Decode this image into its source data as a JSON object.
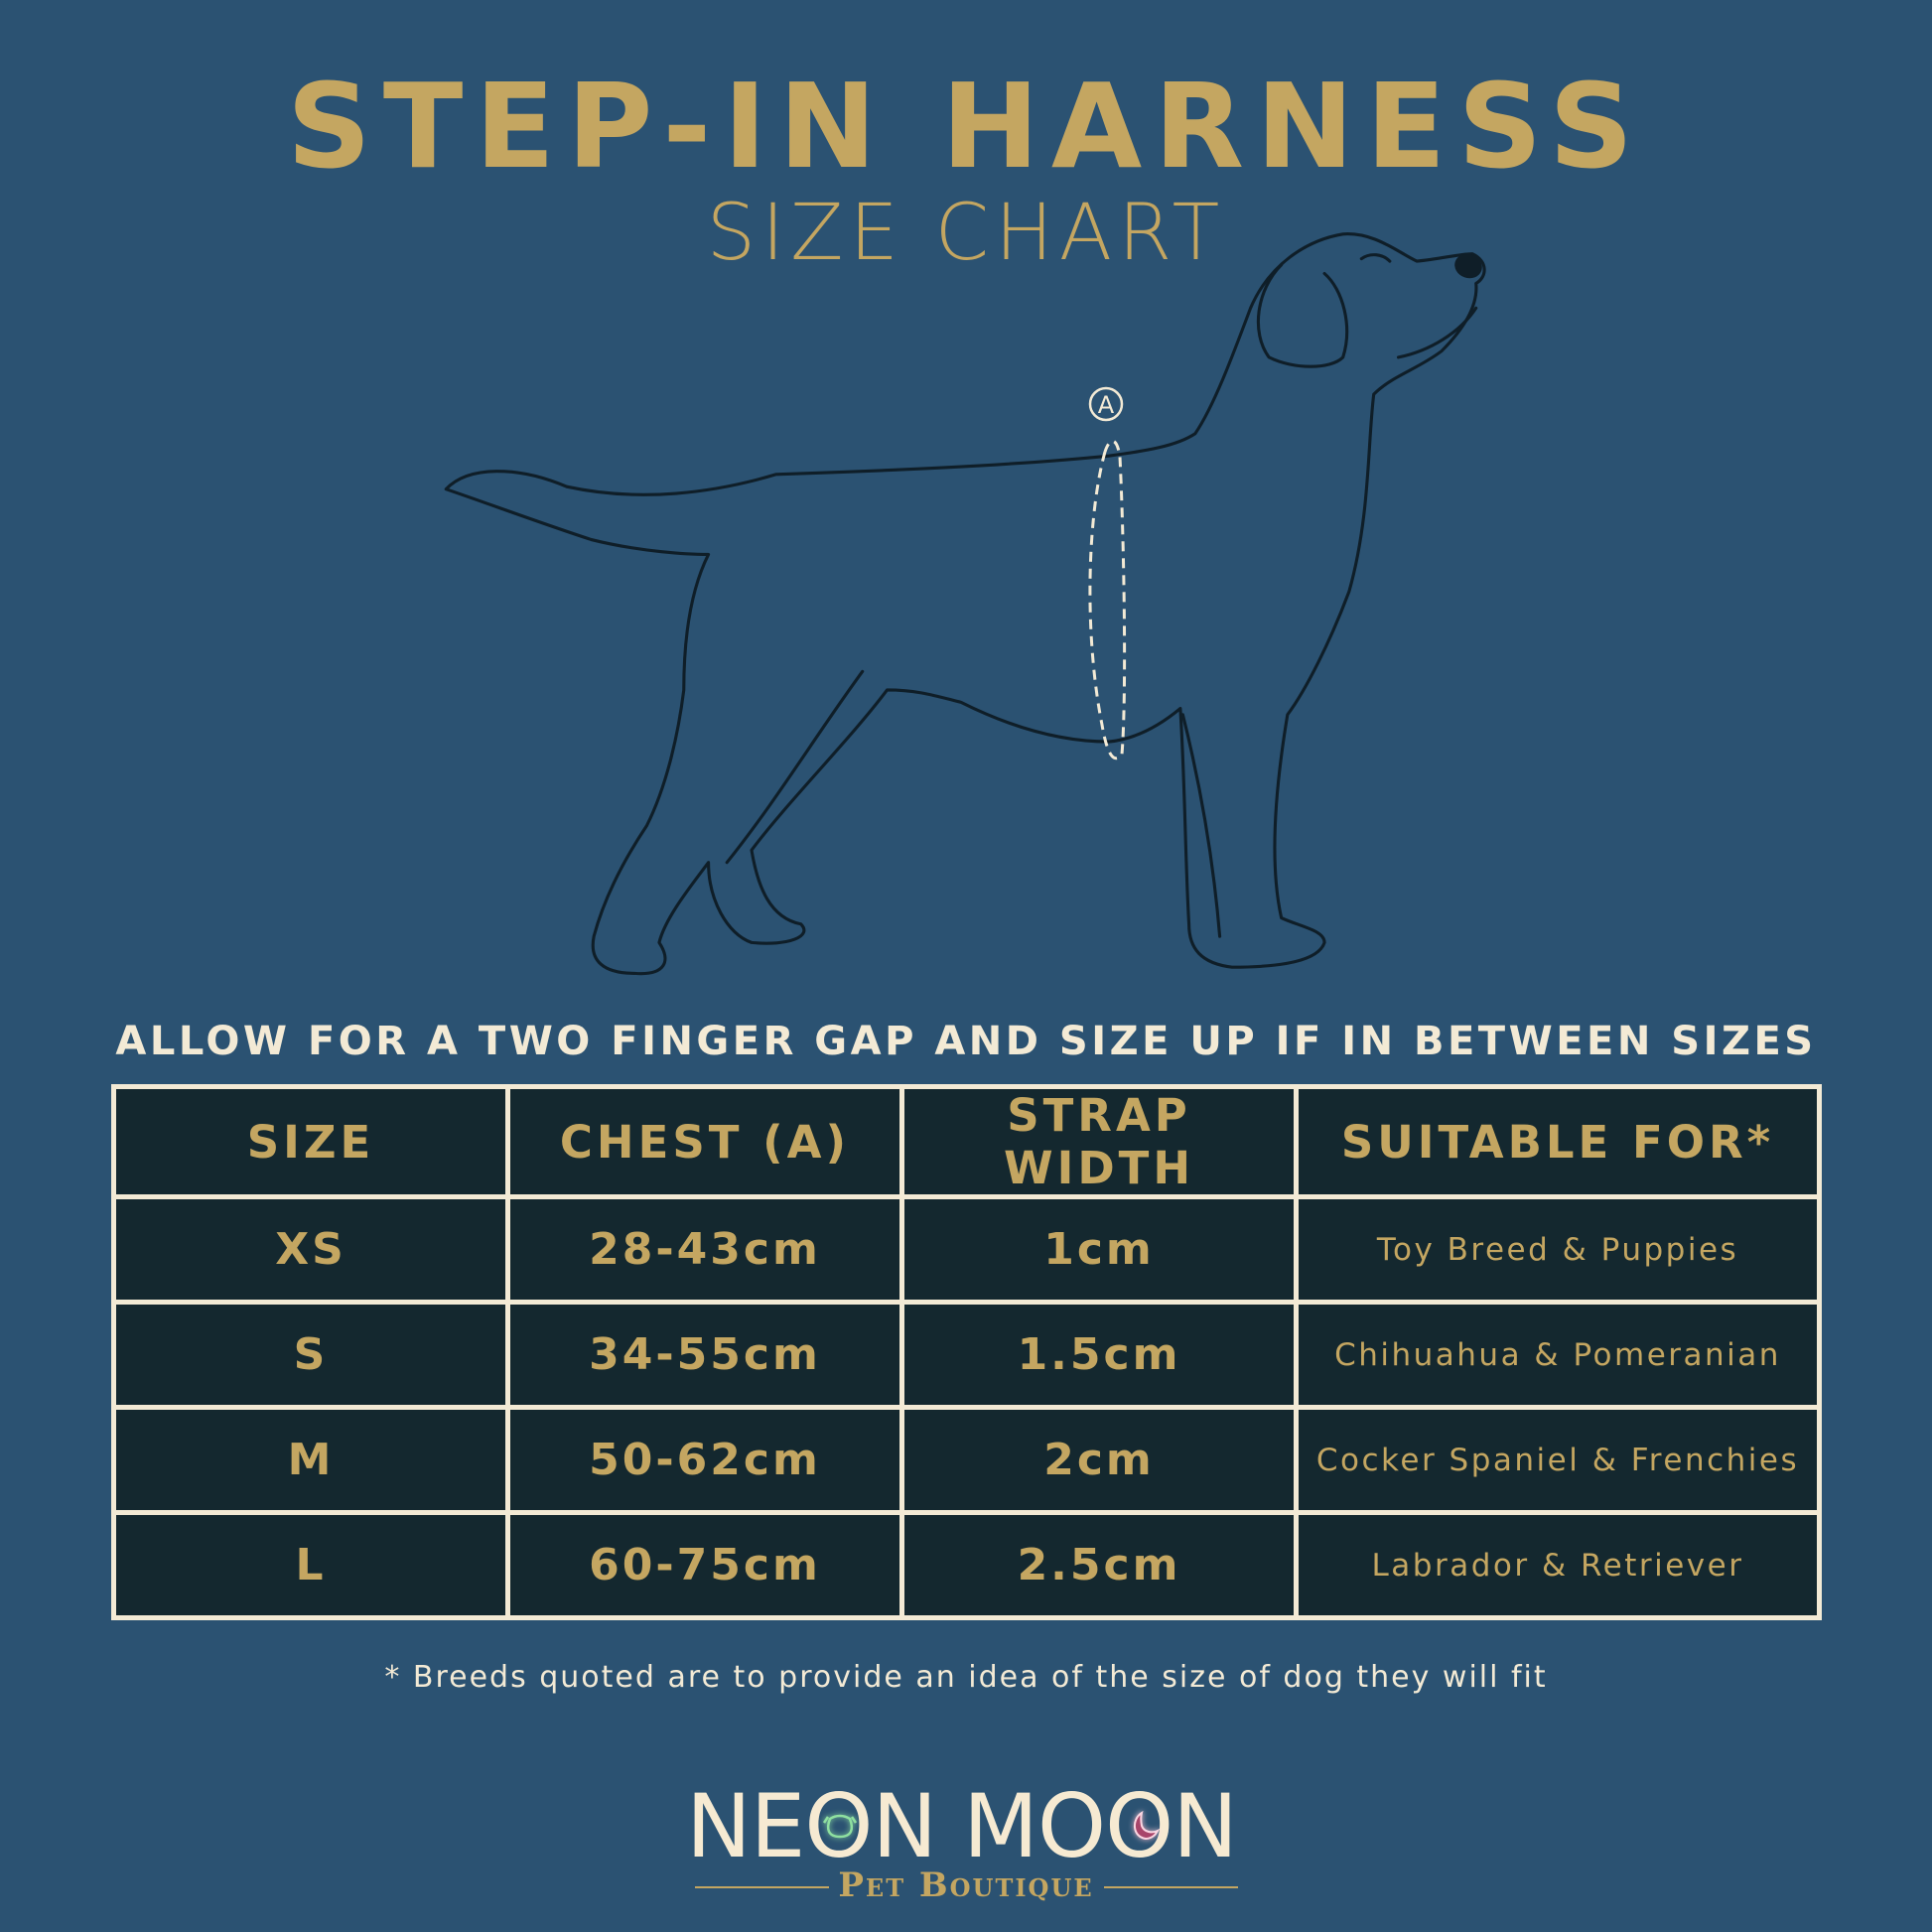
{
  "header": {
    "title": "STEP-IN HARNESS",
    "subtitle": "SIZE CHART"
  },
  "illustration": {
    "subject": "dog-outline",
    "measure_marker": "A"
  },
  "note": "ALLOW FOR A TWO FINGER GAP AND SIZE UP IF IN BETWEEN SIZES",
  "table": {
    "headers": [
      "SIZE",
      "CHEST (A)",
      "STRAP WIDTH",
      "SUITABLE FOR*"
    ],
    "rows": [
      [
        "XS",
        "28-43cm",
        "1cm",
        "Toy Breed & Puppies"
      ],
      [
        "S",
        "34-55cm",
        "1.5cm",
        "Chihuahua & Pomeranian"
      ],
      [
        "M",
        "50-62cm",
        "2cm",
        "Cocker Spaniel & Frenchies"
      ],
      [
        "L",
        "60-75cm",
        "2.5cm",
        "Labrador & Retriever"
      ]
    ]
  },
  "footnote": "* Breeds quoted are to provide an idea of the size of dog they will fit",
  "brand": {
    "name": "NEON MOON",
    "tagline": "Pet Boutique"
  },
  "colors": {
    "background": "#2b5272",
    "gold": "#c4a661",
    "cream": "#f3ead5",
    "cell": "#14282f",
    "neon_green": "#8fe0a0",
    "neon_pink": "#e0407a"
  }
}
